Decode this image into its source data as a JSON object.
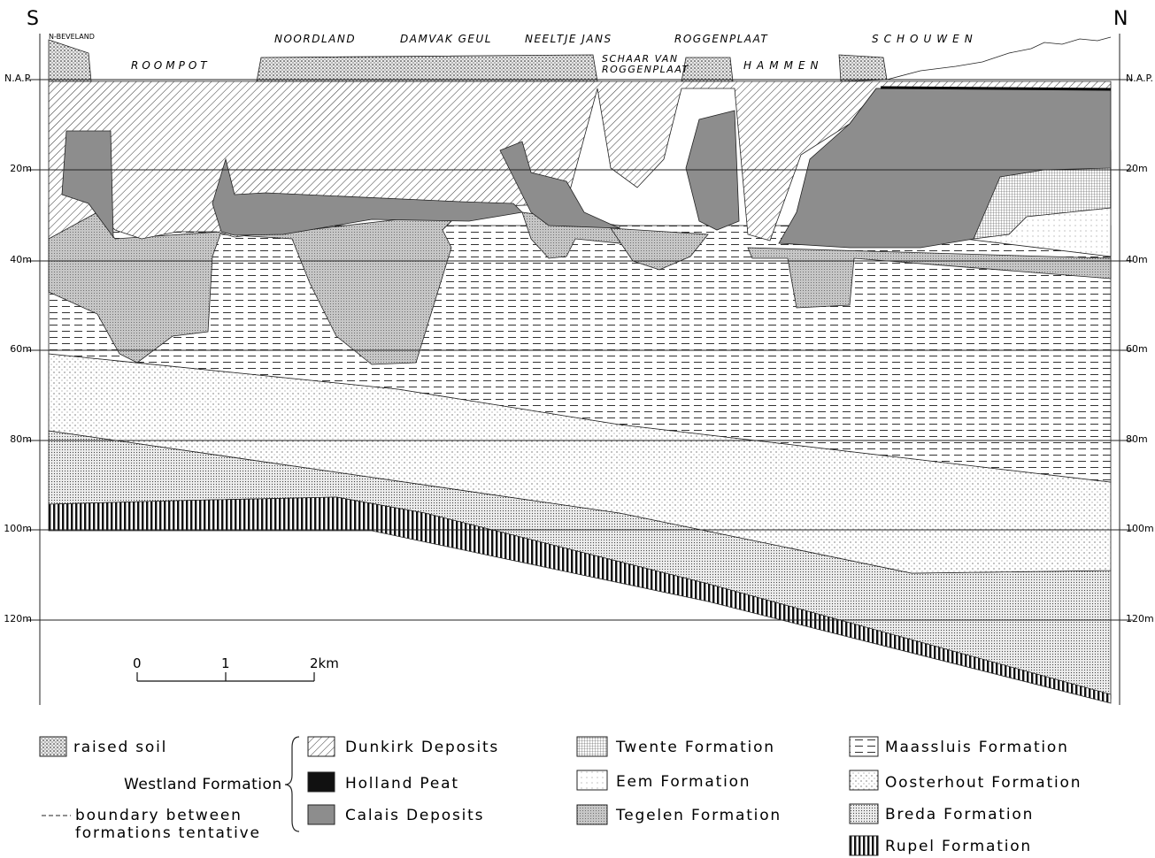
{
  "compass": {
    "south": "S",
    "north": "N"
  },
  "places": {
    "n_beveland": "N-BEVELAND",
    "roompot": "ROOMPOT",
    "noordland": "NOORDLAND",
    "damvak_geul": "DAMVAK GEUL",
    "neeltje_jans": "NEELTJE JANS",
    "schaar_van": "SCHAAR VAN",
    "roggenplaat_lower": "ROGGENPLAAT",
    "roggenplaat": "ROGGENPLAAT",
    "hammen": "HAMMEN",
    "schouwen": "SCHOUWEN"
  },
  "depth_labels": {
    "left": [
      "N.A.P.",
      "20m",
      "40m",
      "60m",
      "80m",
      "100m",
      "120m"
    ],
    "right": [
      "N.A.P.",
      "20m",
      "40m",
      "60m",
      "80m",
      "100m",
      "120m"
    ]
  },
  "scale_bar": [
    "0",
    "1",
    "2km"
  ],
  "legend": {
    "raised_soil": "raised soil",
    "westland": "Westland Formation",
    "boundary": [
      "boundary between",
      "formations tentative"
    ],
    "westland_members": [
      "Dunkirk Deposits",
      "Holland Peat",
      "Calais Deposits"
    ],
    "formations_middle": [
      "Twente Formation",
      "Eem Formation",
      "Tegelen Formation"
    ],
    "formations_right": [
      "Maassluis Formation",
      "Oosterhout Formation",
      "Breda Formation",
      "Rupel Formation"
    ]
  }
}
